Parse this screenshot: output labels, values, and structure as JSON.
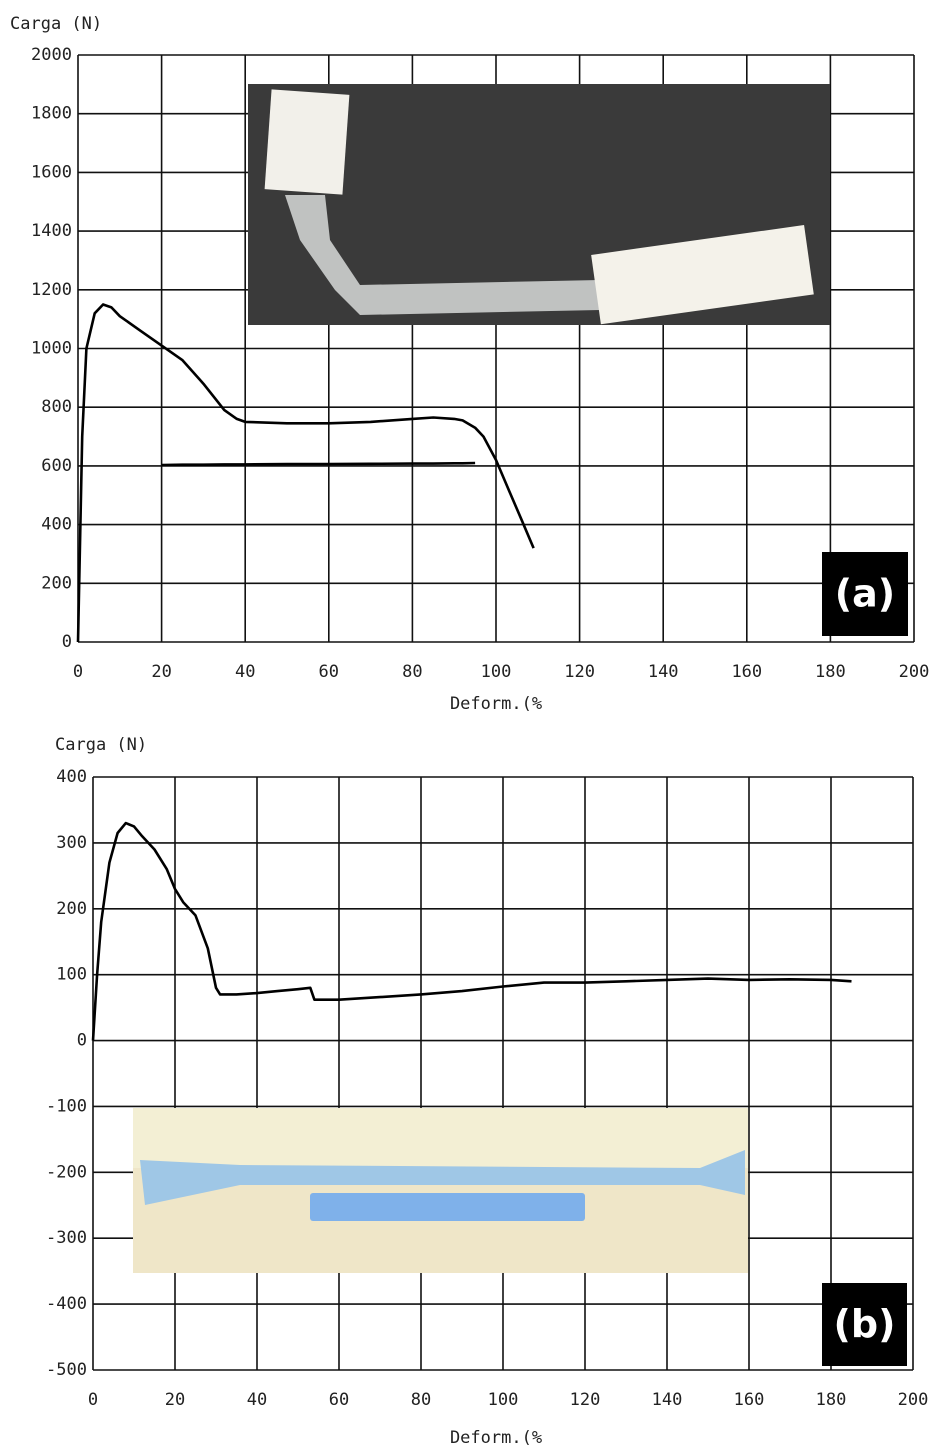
{
  "chart_data": [
    {
      "type": "line",
      "ylabel": "Carga (N)",
      "xlabel": "Deform.(%",
      "panel_label": "(a)",
      "x": [
        0,
        1,
        2,
        4,
        6,
        8,
        10,
        15,
        20,
        25,
        30,
        35,
        38,
        40,
        50,
        60,
        70,
        80,
        85,
        90,
        92,
        95,
        97,
        100,
        103,
        106,
        109
      ],
      "series": [
        {
          "color": "#000000",
          "values": [
            0,
            700,
            1000,
            1120,
            1150,
            1140,
            1110,
            1060,
            1010,
            960,
            880,
            790,
            760,
            750,
            745,
            745,
            750,
            760,
            765,
            760,
            755,
            730,
            700,
            620,
            520,
            420,
            320
          ]
        },
        {
          "color": "#000000",
          "values": [
            null,
            null,
            null,
            null,
            null,
            null,
            null,
            null,
            603,
            604,
            604,
            605,
            605,
            605,
            606,
            606,
            607,
            608,
            608,
            609,
            609,
            610,
            null,
            null,
            null,
            null,
            null
          ]
        }
      ],
      "xlim": [
        0,
        200
      ],
      "xticks": [
        0,
        20,
        40,
        60,
        80,
        100,
        120,
        140,
        160,
        180,
        200
      ],
      "ylim": [
        0,
        2000
      ],
      "yticks": [
        0,
        200,
        400,
        600,
        800,
        1000,
        1200,
        1400,
        1600,
        1800,
        2000
      ],
      "grid": true
    },
    {
      "type": "line",
      "ylabel": "Carga (N)",
      "xlabel": "Deform.(%",
      "panel_label": "(b)",
      "x": [
        0,
        1,
        2,
        4,
        6,
        8,
        10,
        12,
        15,
        18,
        20,
        22,
        25,
        28,
        30,
        31,
        35,
        40,
        45,
        50,
        53,
        54,
        60,
        70,
        80,
        90,
        100,
        110,
        120,
        130,
        140,
        150,
        160,
        170,
        180,
        185
      ],
      "series": [
        {
          "color": "#000000",
          "values": [
            0,
            100,
            180,
            270,
            315,
            330,
            325,
            310,
            290,
            260,
            230,
            210,
            190,
            140,
            80,
            70,
            70,
            72,
            75,
            78,
            80,
            62,
            62,
            66,
            70,
            75,
            82,
            88,
            88,
            90,
            92,
            94,
            92,
            93,
            92,
            90
          ]
        }
      ],
      "xlim": [
        0,
        200
      ],
      "xticks": [
        0,
        20,
        40,
        60,
        80,
        100,
        120,
        140,
        160,
        180,
        200
      ],
      "ylim": [
        -500,
        400
      ],
      "yticks": [
        -500,
        -400,
        -300,
        -200,
        -100,
        0,
        100,
        200,
        300,
        400
      ],
      "grid": true
    }
  ]
}
